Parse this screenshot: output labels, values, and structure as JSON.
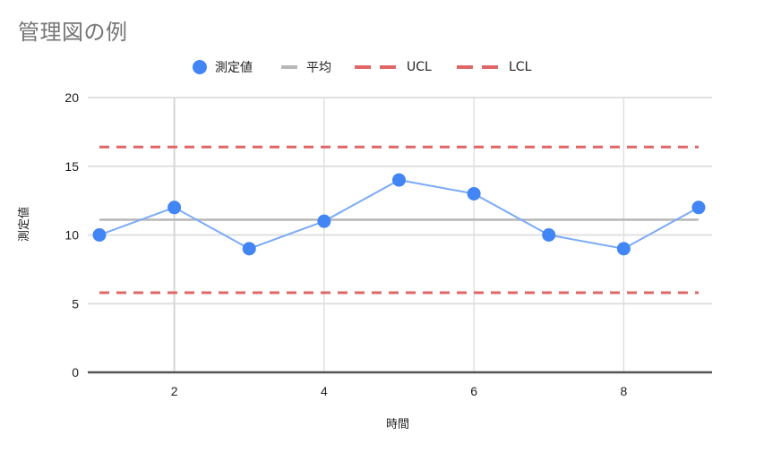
{
  "title": "管理図の例",
  "legend": [
    {
      "label": "測定値",
      "marker": "circle",
      "color": "#4285f4"
    },
    {
      "label": "平均",
      "marker": "line",
      "color": "#b7b7b7"
    },
    {
      "label": "UCL",
      "marker": "dashed-line",
      "color": "#e06666"
    },
    {
      "label": "LCL",
      "marker": "dashed-line",
      "color": "#e06666"
    }
  ],
  "axes": {
    "x_label": "時間",
    "y_label": "測定値",
    "x_ticks": [
      "2",
      "4",
      "6",
      "8"
    ],
    "y_ticks": [
      "0",
      "5",
      "10",
      "15",
      "20"
    ]
  },
  "chart_data": {
    "type": "line",
    "title": "管理図の例",
    "xlabel": "時間",
    "ylabel": "測定値",
    "x": [
      1,
      2,
      3,
      4,
      5,
      6,
      7,
      8,
      9
    ],
    "series": [
      {
        "name": "測定値",
        "values": [
          10,
          12,
          9,
          11,
          14,
          13,
          10,
          9,
          12
        ],
        "color": "#4285f4",
        "style": "line+markers"
      },
      {
        "name": "平均",
        "values": [
          11.11,
          11.11,
          11.11,
          11.11,
          11.11,
          11.11,
          11.11,
          11.11,
          11.11
        ],
        "color": "#b7b7b7",
        "style": "solid"
      },
      {
        "name": "UCL",
        "values": [
          16.4,
          16.4,
          16.4,
          16.4,
          16.4,
          16.4,
          16.4,
          16.4,
          16.4
        ],
        "color": "#e06666",
        "style": "dashed"
      },
      {
        "name": "LCL",
        "values": [
          5.8,
          5.8,
          5.8,
          5.8,
          5.8,
          5.8,
          5.8,
          5.8,
          5.8
        ],
        "color": "#e06666",
        "style": "dashed"
      }
    ],
    "xlim": [
      1,
      9
    ],
    "ylim": [
      0,
      20
    ],
    "x_ticks": [
      2,
      4,
      6,
      8
    ],
    "y_ticks": [
      0,
      5,
      10,
      15,
      20
    ],
    "grid": true,
    "legend_position": "top"
  }
}
